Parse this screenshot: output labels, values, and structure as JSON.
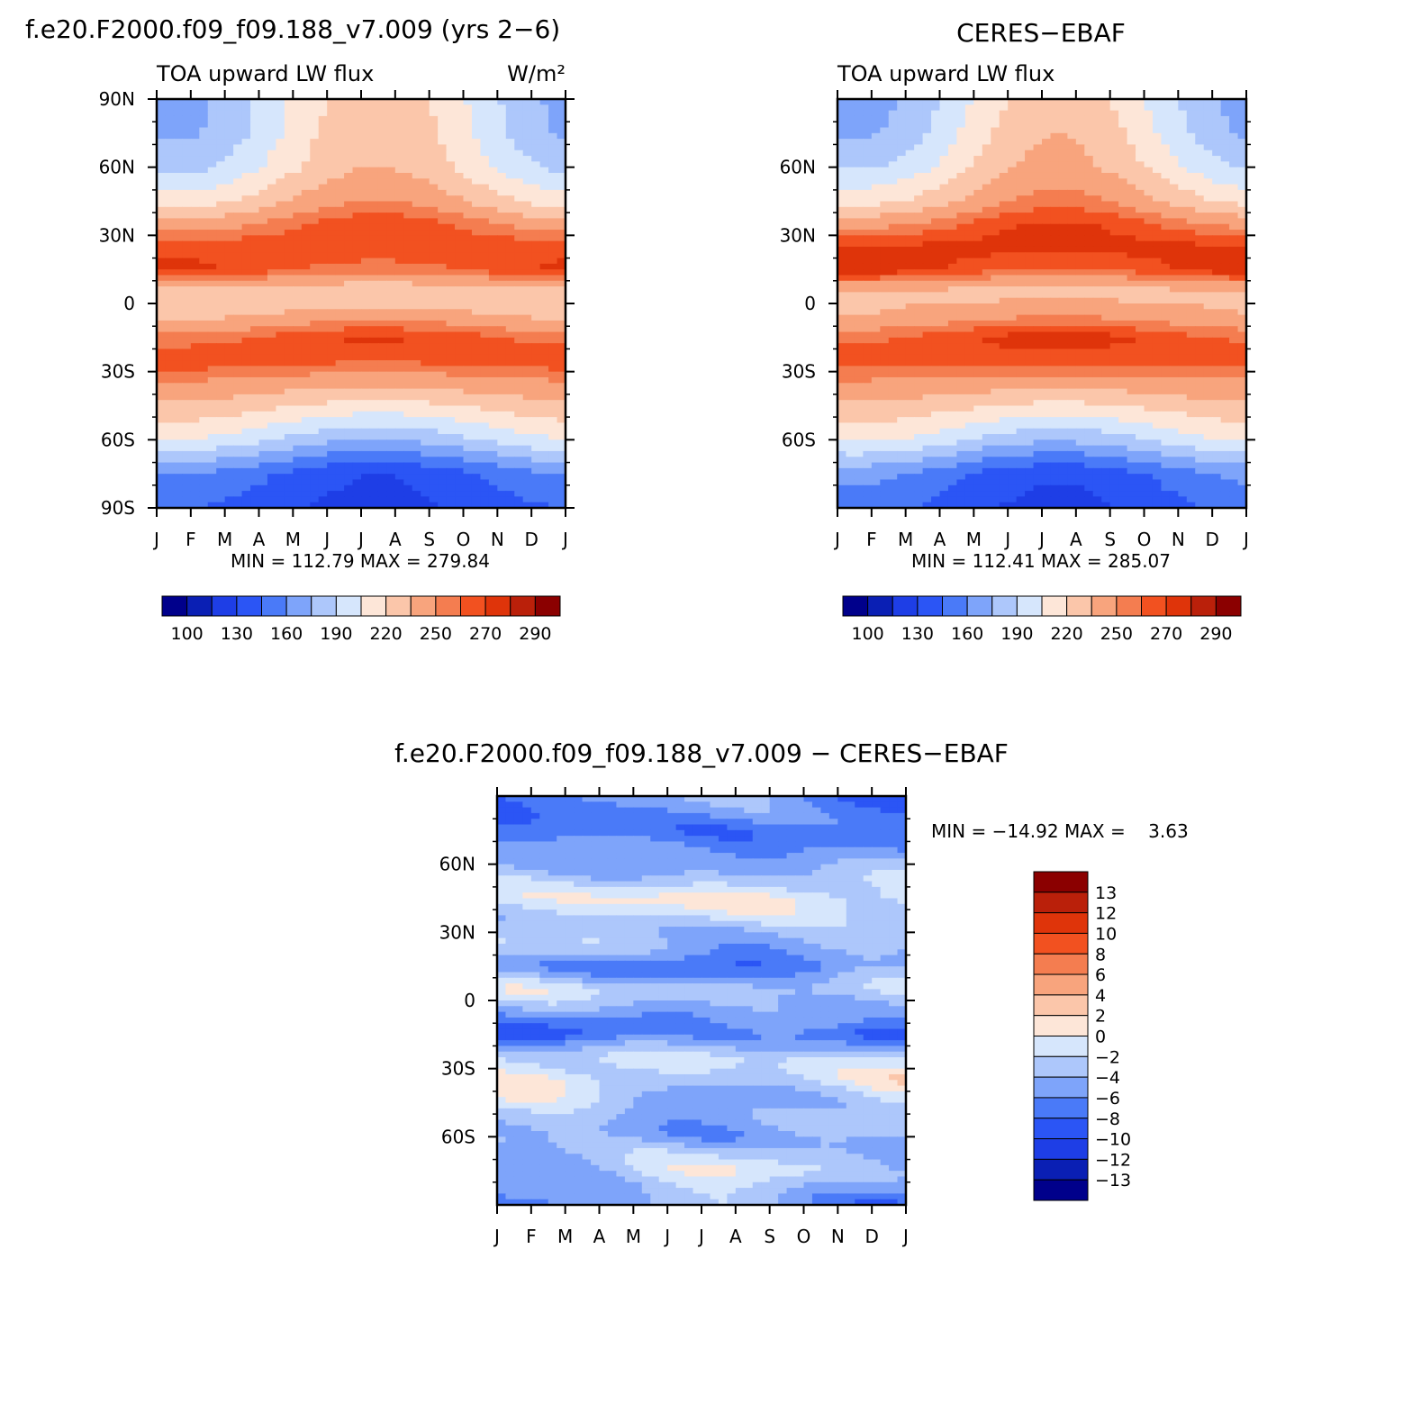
{
  "palette": {
    "abs": [
      "#00008b",
      "#0a1fb4",
      "#1e3ee6",
      "#2b55f5",
      "#4a7af8",
      "#7ea4fa",
      "#adc7fb",
      "#d6e6fc",
      "#fde6d8",
      "#fbc6aa",
      "#f8a47d",
      "#f47d50",
      "#f25120",
      "#df340a",
      "#ba200a",
      "#8b0000"
    ],
    "diff": [
      "#00008b",
      "#0a1fb4",
      "#1e3ee6",
      "#2b55f5",
      "#4a7af8",
      "#7ea4fa",
      "#adc7fb",
      "#d6e6fc",
      "#fde6d8",
      "#fbc6aa",
      "#f8a47d",
      "#f47d50",
      "#f25120",
      "#df340a",
      "#ba200a",
      "#8b0000"
    ]
  },
  "page_titles": {
    "left": "f.e20.F2000.f09_f09.188_v7.009 (yrs 2−6)",
    "right": "CERES−EBAF",
    "bottom": "f.e20.F2000.f09_f09.188_v7.009 − CERES−EBAF"
  },
  "chart_data": [
    {
      "type": "heatmap",
      "panel": "model",
      "title": "TOA upward LW flux",
      "units": "W/m²",
      "x": [
        "J",
        "F",
        "M",
        "A",
        "M",
        "J",
        "J",
        "A",
        "S",
        "O",
        "N",
        "D",
        "J"
      ],
      "ytick_labels": [
        "90N",
        "60N",
        "30N",
        "0",
        "30S",
        "60S",
        "90S"
      ],
      "ylim": [
        -90,
        90
      ],
      "stats": "MIN = 112.79 MAX = 279.84",
      "min": 112.79,
      "max": 279.84,
      "colorbar_labels": [
        "100",
        "130",
        "160",
        "190",
        "220",
        "250",
        "270",
        "290"
      ],
      "contour_levels": [
        100,
        115,
        130,
        145,
        160,
        175,
        190,
        205,
        220,
        235,
        250,
        260,
        270,
        280,
        290
      ],
      "zonal_profile": {
        "lat": [
          90,
          75,
          60,
          45,
          35,
          25,
          15,
          5,
          -5,
          -15,
          -25,
          -35,
          -45,
          -60,
          -75,
          -90
        ],
        "values_jan": [
          170,
          172,
          185,
          212,
          240,
          268,
          272,
          228,
          230,
          255,
          268,
          248,
          232,
          205,
          160,
          145
        ],
        "values_jul": [
          228,
          232,
          235,
          250,
          268,
          268,
          255,
          222,
          242,
          272,
          262,
          240,
          214,
          175,
          130,
          125
        ]
      }
    },
    {
      "type": "heatmap",
      "panel": "observations",
      "title": "TOA upward LW flux",
      "x": [
        "J",
        "F",
        "M",
        "A",
        "M",
        "J",
        "J",
        "A",
        "S",
        "O",
        "N",
        "D",
        "J"
      ],
      "ytick_labels": [
        "60N",
        "30N",
        "0",
        "30S",
        "60S"
      ],
      "ylim": [
        -90,
        90
      ],
      "stats": "MIN = 112.41 MAX = 285.07",
      "min": 112.41,
      "max": 285.07,
      "colorbar_labels": [
        "100",
        "130",
        "160",
        "190",
        "220",
        "250",
        "270",
        "290"
      ],
      "contour_levels": [
        100,
        115,
        130,
        145,
        160,
        175,
        190,
        205,
        220,
        235,
        250,
        260,
        270,
        280,
        290
      ],
      "zonal_profile": {
        "lat": [
          90,
          75,
          60,
          45,
          35,
          25,
          15,
          5,
          -5,
          -15,
          -25,
          -35,
          -45,
          -60,
          -75,
          -90
        ],
        "values_jan": [
          168,
          172,
          188,
          215,
          245,
          272,
          278,
          232,
          235,
          258,
          265,
          248,
          233,
          208,
          165,
          150
        ],
        "values_jul": [
          228,
          235,
          240,
          255,
          272,
          275,
          258,
          228,
          248,
          276,
          265,
          242,
          216,
          178,
          132,
          125
        ]
      }
    },
    {
      "type": "heatmap",
      "panel": "difference",
      "x": [
        "J",
        "F",
        "M",
        "A",
        "M",
        "J",
        "J",
        "A",
        "S",
        "O",
        "N",
        "D",
        "J"
      ],
      "ytick_labels": [
        "60N",
        "30N",
        "0",
        "30S",
        "60S"
      ],
      "ylim": [
        -90,
        90
      ],
      "stats": "MIN = −14.92 MAX =    3.63",
      "min": -14.92,
      "max": 3.63,
      "colorbar_labels": [
        "13",
        "12",
        "10",
        "8",
        "6",
        "4",
        "2",
        "0",
        "−2",
        "−4",
        "−6",
        "−8",
        "−10",
        "−12",
        "−13"
      ],
      "contour_levels": [
        -13,
        -12,
        -10,
        -8,
        -6,
        -4,
        -2,
        0,
        2,
        4,
        6,
        8,
        10,
        12,
        13
      ],
      "zonal_profile": {
        "lat": [
          90,
          75,
          60,
          45,
          35,
          25,
          15,
          5,
          -5,
          -15,
          -25,
          -35,
          -45,
          -60,
          -75,
          -90
        ],
        "values_jan": [
          -8,
          -7,
          -4,
          -1,
          -3,
          -2,
          -5,
          -1,
          -4,
          -10,
          -2,
          1,
          -1,
          -4,
          -5,
          -8
        ],
        "values_jul": [
          -4,
          -7,
          -6,
          1,
          -2,
          -5,
          -9,
          -3,
          -6,
          -5,
          -2,
          -3,
          -6,
          -5,
          0,
          -3
        ]
      }
    }
  ]
}
